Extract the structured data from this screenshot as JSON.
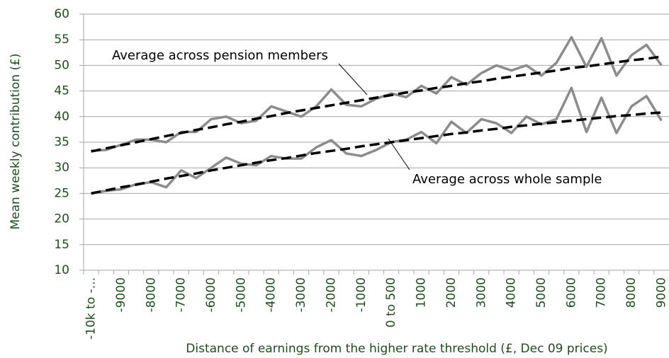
{
  "chart_data": {
    "type": "line",
    "y_label": "Mean weekly contribution (£)",
    "x_label": "Distance of earnings from the higher rate threshold (£, Dec 09 prices)",
    "annotations": [
      "Average across pension members",
      "Average across whole sample"
    ],
    "categories": [
      "-10k to -...",
      null,
      "-9000",
      null,
      "-8000",
      null,
      "-7000",
      null,
      "-6000",
      null,
      "-5000",
      null,
      "-4000",
      null,
      "-3000",
      null,
      "-2000",
      null,
      "-1000",
      null,
      "0 to 500",
      null,
      "1000",
      null,
      "2000",
      null,
      "3000",
      null,
      "4000",
      null,
      "5000",
      null,
      "6000",
      null,
      "7000",
      null,
      "8000",
      null,
      "9000"
    ],
    "series": [
      {
        "color": "#8c8c8c",
        "style": "solid",
        "values": [
          33.3,
          33.5,
          34.5,
          35.5,
          35.5,
          35,
          37,
          37,
          39.5,
          40,
          38.7,
          39.2,
          42,
          41,
          40,
          42,
          45.3,
          42.3,
          42,
          43.5,
          44.5,
          43.8,
          46,
          44.5,
          47.7,
          46.2,
          48.5,
          50,
          49,
          50,
          48,
          50.5,
          55.5,
          49.7,
          55.3,
          48,
          52,
          54,
          50
        ]
      },
      {
        "color": "#8c8c8c",
        "style": "solid",
        "values": [
          25,
          25.5,
          25.8,
          26.8,
          27.2,
          26.2,
          29.5,
          28,
          30,
          32,
          30.8,
          30.5,
          32.3,
          31.8,
          31.8,
          34,
          35.4,
          32.8,
          32.3,
          33.5,
          35,
          35.5,
          37,
          34.8,
          39,
          36.8,
          39.5,
          38.7,
          36.8,
          40,
          38.5,
          39.5,
          45.6,
          37,
          43.7,
          36.8,
          42,
          44,
          39.2
        ]
      },
      {
        "color": "#000000",
        "style": "dashed",
        "values": [
          33.2,
          33.8,
          34.4,
          35.0,
          35.6,
          36.2,
          36.8,
          37.4,
          37.9,
          38.5,
          39.0,
          39.6,
          40.1,
          40.7,
          41.2,
          41.7,
          42.2,
          42.7,
          43.2,
          43.7,
          44.2,
          44.7,
          45.1,
          45.6,
          46.0,
          46.5,
          46.9,
          47.4,
          47.8,
          48.2,
          48.6,
          49.0,
          49.5,
          49.8,
          50.2,
          50.6,
          51.0,
          51.3,
          51.7
        ]
      },
      {
        "color": "#000000",
        "style": "dashed",
        "values": [
          25.0,
          25.6,
          26.2,
          26.7,
          27.3,
          27.9,
          28.4,
          28.9,
          29.5,
          30.0,
          30.5,
          31.0,
          31.5,
          31.9,
          32.4,
          32.9,
          33.3,
          33.7,
          34.2,
          34.6,
          35.0,
          35.4,
          35.8,
          36.2,
          36.6,
          36.9,
          37.3,
          37.6,
          38.0,
          38.3,
          38.6,
          38.9,
          39.2,
          39.5,
          39.8,
          40.1,
          40.3,
          40.6,
          40.8
        ]
      }
    ],
    "ylim": [
      10,
      60
    ],
    "yticks": [
      10,
      15,
      20,
      25,
      30,
      35,
      40,
      45,
      50,
      55,
      60
    ],
    "grid": true
  }
}
